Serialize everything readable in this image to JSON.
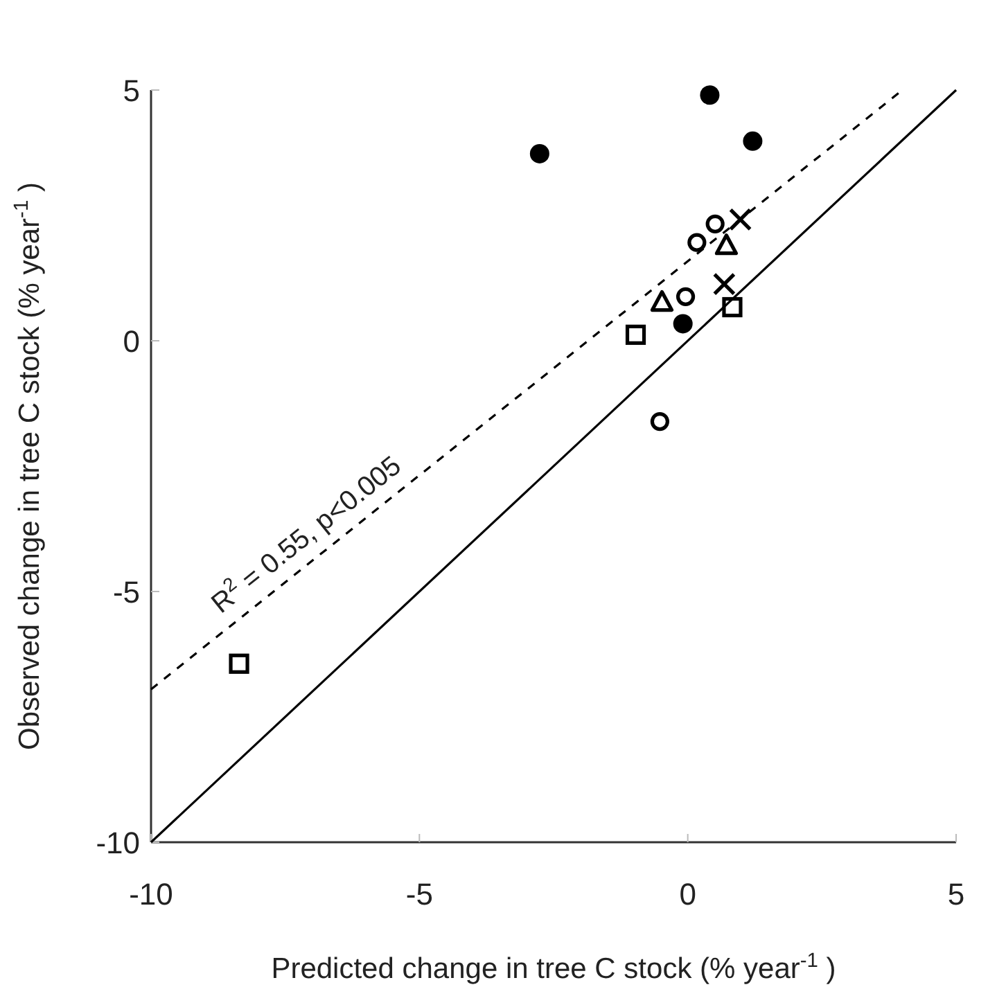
{
  "chart_data": {
    "type": "scatter",
    "xlabel": "Predicted change in tree C stock (% year$^{-1}$)",
    "ylabel": "Observed change in tree C stock (% year$^{-1}$)",
    "xlim": [
      -10,
      5
    ],
    "ylim": [
      -10,
      5
    ],
    "xticks": [
      -10,
      -5,
      0,
      5
    ],
    "yticks": [
      -10,
      -5,
      0,
      5
    ],
    "grid": false,
    "annotations": [
      "R$^{2}$ = 0.55, p<0.005"
    ],
    "series": [
      {
        "marker": "circle",
        "color": "#000000",
        "x": [
          -2.76,
          0.41,
          1.21,
          -0.09
        ],
        "values": [
          3.73,
          4.9,
          3.98,
          0.34
        ]
      },
      {
        "marker": "circle",
        "color": "#000000",
        "x": [
          0.17,
          0.51,
          -0.04,
          -0.52
        ],
        "values": [
          1.96,
          2.33,
          0.88,
          -1.61
        ]
      },
      {
        "marker": "triangle",
        "color": "#000000",
        "x": [
          0.72,
          -0.48
        ],
        "values": [
          1.91,
          0.78
        ]
      },
      {
        "marker": "cross",
        "color": "#000000",
        "x": [
          0.98,
          0.68
        ],
        "values": [
          2.42,
          1.13
        ]
      },
      {
        "marker": "square",
        "color": "#000000",
        "x": [
          0.83,
          -0.97,
          -8.36
        ],
        "values": [
          0.67,
          0.12,
          -6.44
        ]
      },
      {
        "type": "line",
        "marker": "none",
        "line_style": "dashed",
        "color": "#000000",
        "x": [
          -10,
          4.0
        ],
        "values": [
          -6.95,
          5.0
        ]
      },
      {
        "type": "line",
        "marker": "none",
        "line_style": "solid",
        "color": "#000000",
        "x": [
          -10,
          5
        ],
        "values": [
          -10,
          5
        ]
      }
    ]
  }
}
